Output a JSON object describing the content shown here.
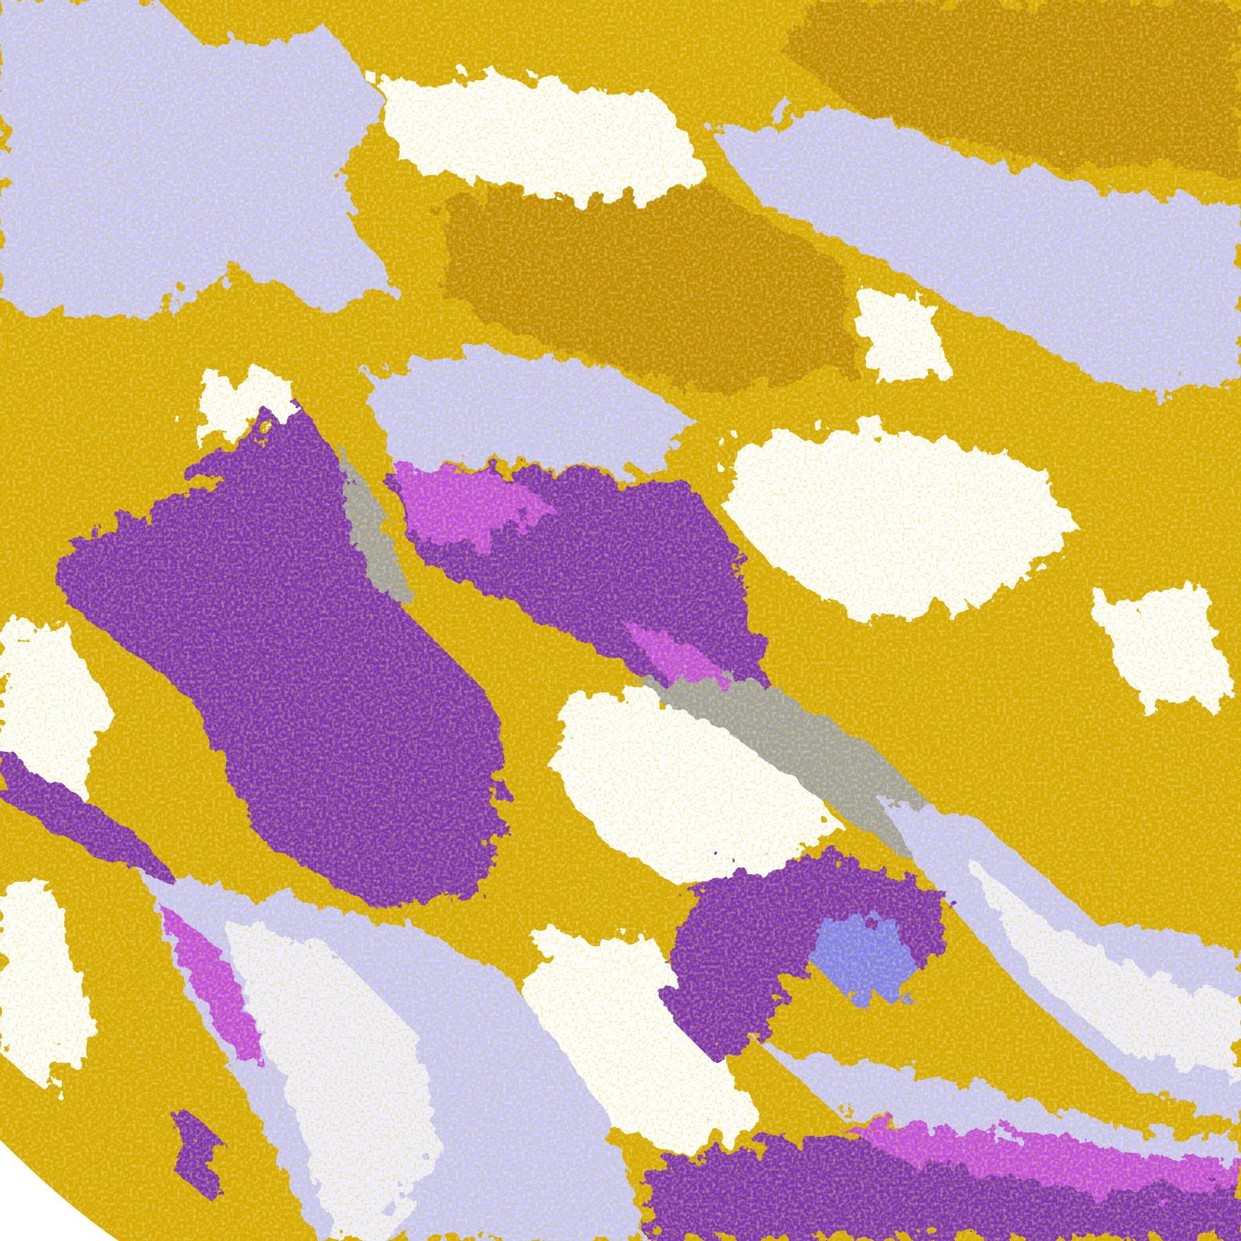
{
  "image": {
    "kind": "false-color satellite cloud classification",
    "palette": {
      "clear": "#ffffff",
      "gold": "#d6aa00",
      "dark_gold": "#c08c00",
      "purple": "#7e30b0",
      "magenta": "#c04ee0",
      "periwinkle": "#8080f0",
      "lavender": "#c8c8fa",
      "pale_lavender": "#eeeeff",
      "gray": "#a0a0a0"
    }
  }
}
